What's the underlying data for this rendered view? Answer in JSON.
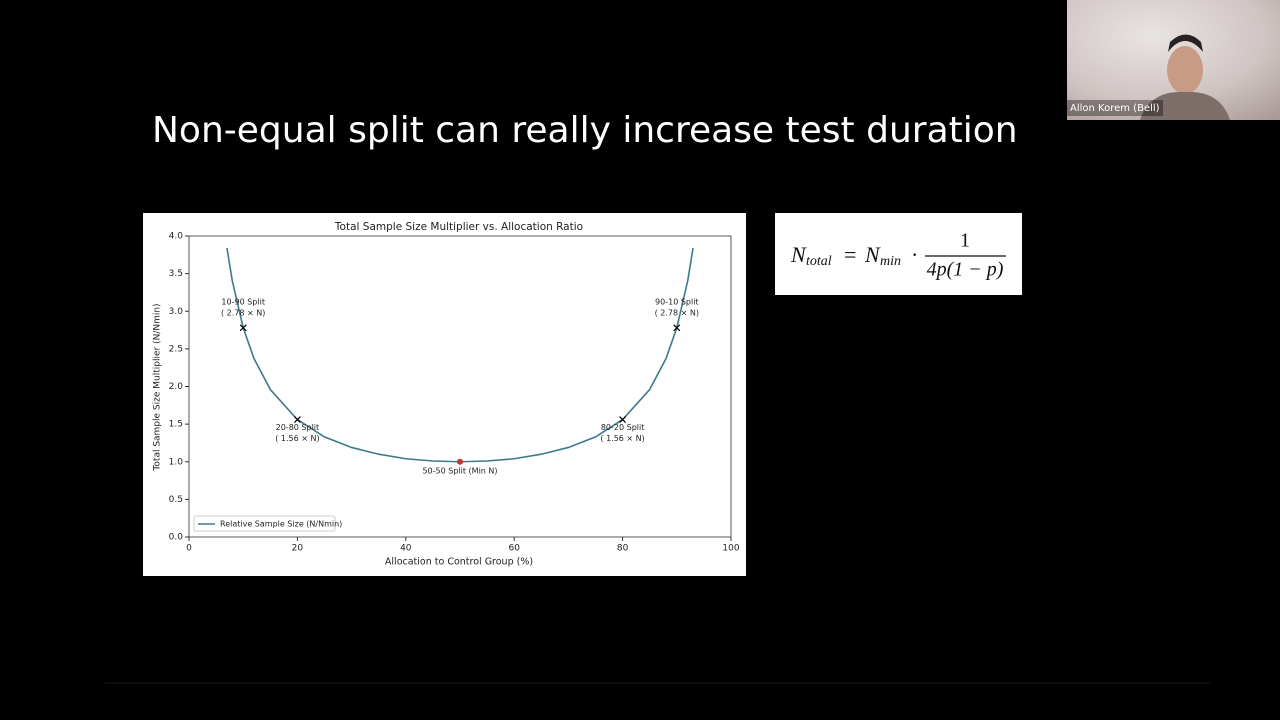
{
  "slide": {
    "title": "Non-equal split can really increase test duration"
  },
  "participant": {
    "name": "Allon Korem (Bell)"
  },
  "formula": {
    "lhs": "N",
    "lhs_sub": "total",
    "equals": "=",
    "rhs": "N",
    "rhs_sub": "min",
    "dot": "·",
    "numerator": "1",
    "denominator": "4p(1 − p)"
  },
  "chart_data": {
    "type": "line",
    "title": "Total Sample Size Multiplier vs. Allocation Ratio",
    "x_label": "Allocation to Control Group (%)",
    "y_label": "Total Sample Size Multiplier (N/Nmin)",
    "x": [
      7,
      8,
      10,
      12,
      15,
      20,
      25,
      30,
      35,
      40,
      45,
      50,
      55,
      60,
      65,
      70,
      75,
      80,
      85,
      88,
      90,
      92,
      93
    ],
    "series": [
      {
        "name": "Relative Sample Size (N/Nmin)",
        "color": "#3d7a8a",
        "values": [
          3.84,
          3.4,
          2.78,
          2.37,
          1.96,
          1.56,
          1.33,
          1.19,
          1.1,
          1.04,
          1.01,
          1.0,
          1.01,
          1.04,
          1.1,
          1.19,
          1.33,
          1.56,
          1.96,
          2.37,
          2.78,
          3.4,
          3.84
        ]
      }
    ],
    "annotations": [
      {
        "x": 10,
        "y": 2.78,
        "label": "10-90 Split",
        "sublabel": "( 2.78 × N)",
        "color": "#000000"
      },
      {
        "x": 20,
        "y": 1.56,
        "label": "20-80 Split",
        "sublabel": "( 1.56 × N)",
        "color": "#000000"
      },
      {
        "x": 50,
        "y": 1.0,
        "label": "50-50 Split (Min N)",
        "color": "#c0392b"
      },
      {
        "x": 80,
        "y": 1.56,
        "label": "80-20 Split",
        "sublabel": "( 1.56 × N)",
        "color": "#000000"
      },
      {
        "x": 90,
        "y": 2.78,
        "label": "90-10 Split",
        "sublabel": "( 2.78 × N)",
        "color": "#000000"
      }
    ],
    "xlim": [
      0,
      100
    ],
    "xticks": [
      0,
      20,
      40,
      60,
      80,
      100
    ],
    "ylim": [
      0,
      4
    ],
    "yticks": [
      {
        "value": 0,
        "label": "0.0"
      },
      0.5,
      {
        "value": 1,
        "label": "1.0"
      },
      1.5,
      {
        "value": 2,
        "label": "2.0"
      },
      2.5,
      {
        "value": 3,
        "label": "3.0"
      },
      3.5,
      {
        "value": 4,
        "label": "4.0"
      }
    ],
    "legend": "lower left"
  }
}
